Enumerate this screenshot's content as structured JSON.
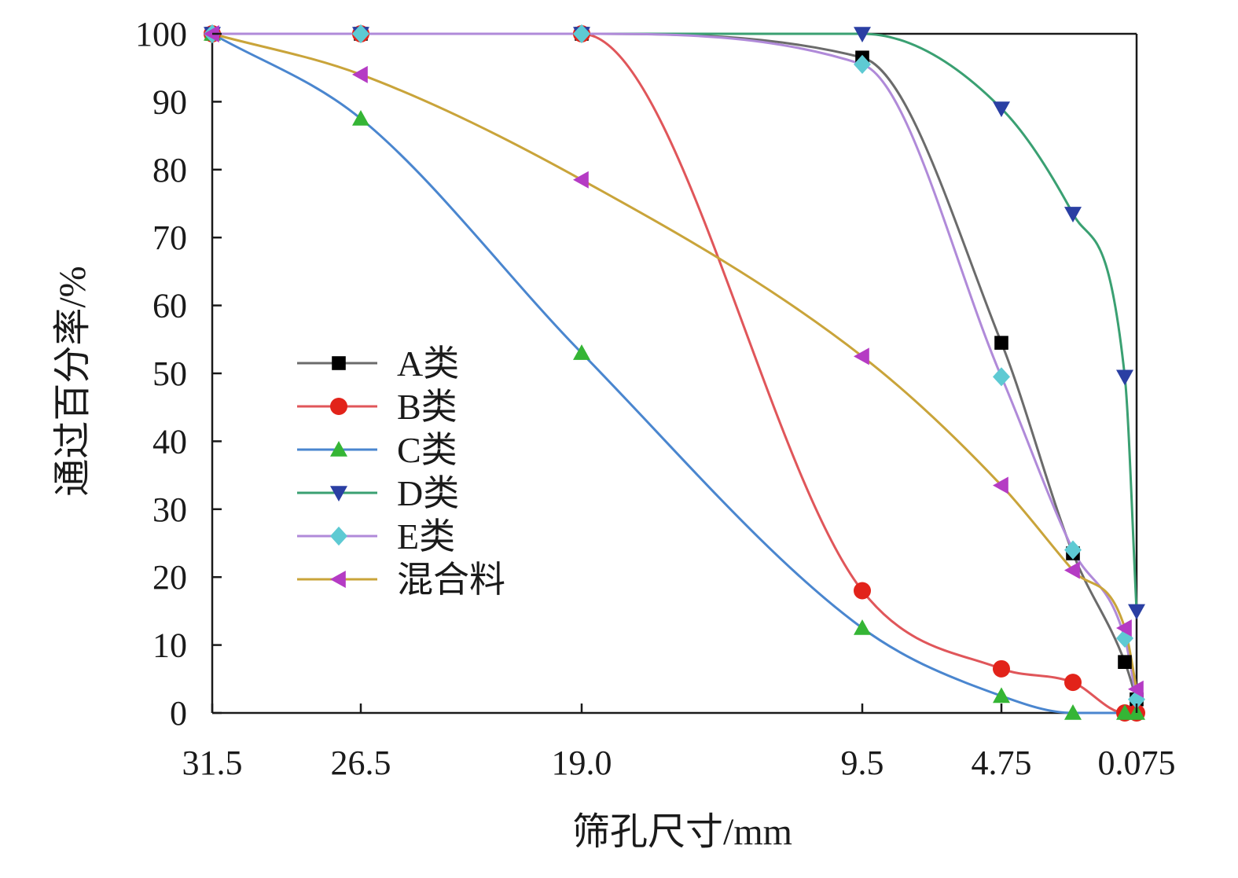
{
  "chart_data": {
    "type": "line",
    "title": "",
    "xlabel": "筛孔尺寸/mm",
    "ylabel": "通过百分率/%",
    "x_categories": [
      "31.5",
      "26.5",
      "19.0",
      "9.5",
      "4.75",
      "0.075"
    ],
    "x_positions": [
      31.5,
      26.5,
      19.0,
      9.5,
      4.75,
      2.3,
      0.6,
      0.075
    ],
    "ylim": [
      0,
      100
    ],
    "y_ticks": [
      "0",
      "10",
      "20",
      "30",
      "40",
      "50",
      "60",
      "70",
      "80",
      "90",
      "100"
    ],
    "legend_position": "center-left",
    "series": [
      {
        "name": "A类",
        "color": "#555555",
        "line_color": "#6b6b6b",
        "marker": "square",
        "marker_color": "#000000",
        "points": [
          [
            31.5,
            100
          ],
          [
            26.5,
            100
          ],
          [
            19.0,
            100
          ],
          [
            9.5,
            96.5
          ],
          [
            4.75,
            54.5
          ],
          [
            2.3,
            23.5
          ],
          [
            0.6,
            7.5
          ],
          [
            0.075,
            2
          ]
        ]
      },
      {
        "name": "B类",
        "color": "#e0393e",
        "line_color": "#e0565a",
        "marker": "circle",
        "marker_color": "#e2231a",
        "points": [
          [
            31.5,
            100
          ],
          [
            26.5,
            100
          ],
          [
            19.0,
            100
          ],
          [
            9.5,
            18
          ],
          [
            4.75,
            6.5
          ],
          [
            2.3,
            4.5
          ],
          [
            0.6,
            0
          ],
          [
            0.075,
            0
          ]
        ]
      },
      {
        "name": "C类",
        "color": "#3d7cc9",
        "line_color": "#4a86cf",
        "marker": "triangle-up",
        "marker_color": "#35b535",
        "points": [
          [
            31.5,
            100
          ],
          [
            26.5,
            87.5
          ],
          [
            19.0,
            53
          ],
          [
            9.5,
            12.5
          ],
          [
            4.75,
            2.5
          ],
          [
            2.3,
            0
          ],
          [
            0.6,
            0
          ],
          [
            0.075,
            0
          ]
        ]
      },
      {
        "name": "D类",
        "color": "#2e9a66",
        "line_color": "#3aa072",
        "marker": "triangle-down",
        "marker_color": "#2a3fa3",
        "points": [
          [
            31.5,
            100
          ],
          [
            26.5,
            100
          ],
          [
            19.0,
            100
          ],
          [
            9.5,
            100
          ],
          [
            4.75,
            89
          ],
          [
            2.3,
            73.5
          ],
          [
            0.6,
            49.5
          ],
          [
            0.075,
            15
          ]
        ]
      },
      {
        "name": "E类",
        "color": "#a77bd6",
        "line_color": "#b08ad9",
        "marker": "diamond",
        "marker_color": "#5ecad3",
        "points": [
          [
            31.5,
            100
          ],
          [
            26.5,
            100
          ],
          [
            19.0,
            100
          ],
          [
            9.5,
            95.5
          ],
          [
            4.75,
            49.5
          ],
          [
            2.3,
            24
          ],
          [
            0.6,
            11
          ],
          [
            0.075,
            2
          ]
        ]
      },
      {
        "name": "混合料",
        "color": "#c4a02e",
        "line_color": "#c9a43a",
        "marker": "triangle-left",
        "marker_color": "#b53bc4",
        "points": [
          [
            31.5,
            100
          ],
          [
            26.5,
            94
          ],
          [
            19.0,
            78.5
          ],
          [
            9.5,
            52.5
          ],
          [
            4.75,
            33.5
          ],
          [
            2.3,
            21
          ],
          [
            0.6,
            12.5
          ],
          [
            0.075,
            3.5
          ]
        ]
      }
    ]
  }
}
